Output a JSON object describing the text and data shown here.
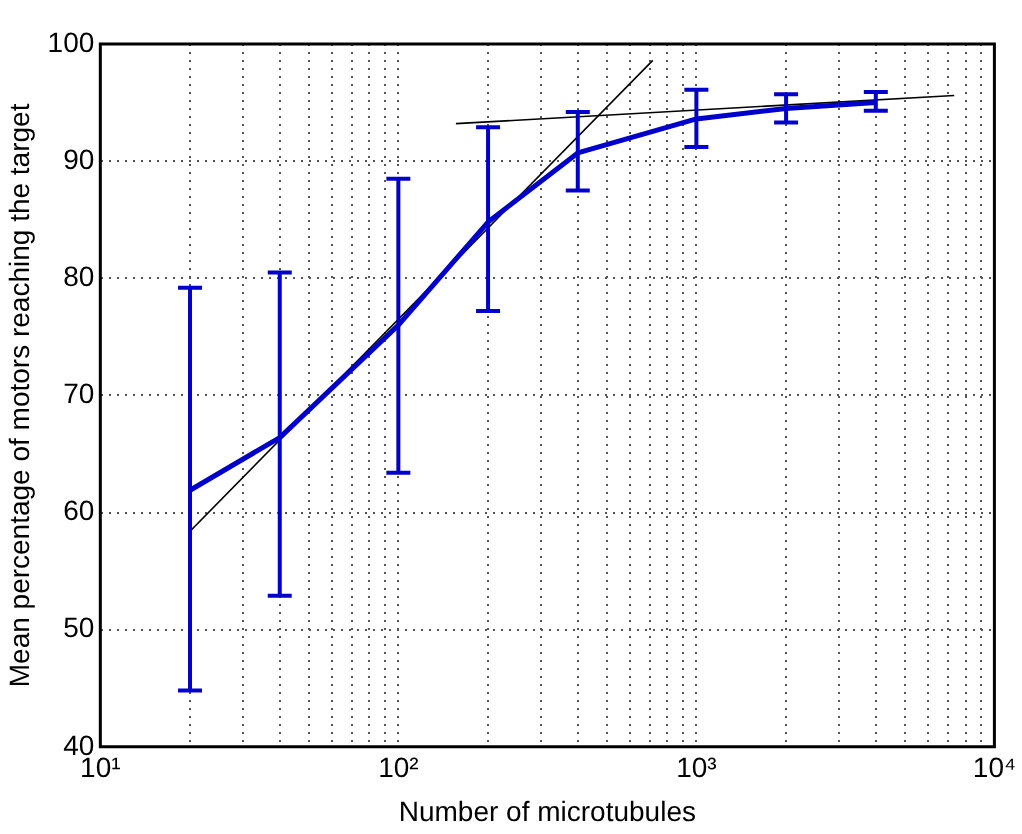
{
  "chart_data": {
    "type": "line",
    "xlabel": "Number of microtubules",
    "ylabel": "Mean percentage of motors reaching the target",
    "log": "x",
    "grid": true,
    "x": [
      20,
      40,
      100,
      200,
      400,
      1000,
      2000,
      4000
    ],
    "xlim": [
      10,
      10000
    ],
    "xticks": [
      {
        "value": 10,
        "label": "10¹"
      },
      {
        "value": 20,
        "label": null
      },
      {
        "value": 30,
        "label": null
      },
      {
        "value": 40,
        "label": null
      },
      {
        "value": 50,
        "label": null
      },
      {
        "value": 60,
        "label": null
      },
      {
        "value": 70,
        "label": null
      },
      {
        "value": 80,
        "label": null
      },
      {
        "value": 90,
        "label": null
      },
      {
        "value": 100,
        "label": "10²"
      },
      {
        "value": 200,
        "label": null
      },
      {
        "value": 300,
        "label": null
      },
      {
        "value": 400,
        "label": null
      },
      {
        "value": 500,
        "label": null
      },
      {
        "value": 600,
        "label": null
      },
      {
        "value": 700,
        "label": null
      },
      {
        "value": 800,
        "label": null
      },
      {
        "value": 900,
        "label": null
      },
      {
        "value": 1000,
        "label": "10³"
      },
      {
        "value": 2000,
        "label": null
      },
      {
        "value": 3000,
        "label": null
      },
      {
        "value": 4000,
        "label": null
      },
      {
        "value": 5000,
        "label": null
      },
      {
        "value": 6000,
        "label": null
      },
      {
        "value": 7000,
        "label": null
      },
      {
        "value": 8000,
        "label": null
      },
      {
        "value": 9000,
        "label": null
      },
      {
        "value": 10000,
        "label": "10⁴"
      }
    ],
    "ylim": [
      40,
      100
    ],
    "yticks": [
      40,
      50,
      60,
      70,
      80,
      90,
      100
    ],
    "series": [
      {
        "color": "#0000cc",
        "values": [
          61.9,
          66.4,
          76,
          84.8,
          90.7,
          93.6,
          94.5,
          95
        ],
        "errors": [
          [
            44.8,
            79.2
          ],
          [
            52.9,
            80.5
          ],
          [
            63.4,
            88.5
          ],
          [
            77.2,
            92.9
          ],
          [
            87.5,
            94.2
          ],
          [
            91.2,
            96.1
          ],
          [
            93.3,
            95.7
          ],
          [
            94.3,
            95.9
          ]
        ]
      },
      {
        "type": "line",
        "color": "#000000",
        "x": [
          20,
          714
        ],
        "values": [
          58.4,
          98.6
        ]
      },
      {
        "type": "line",
        "color": "#000000",
        "x": [
          156,
          7330
        ],
        "values": [
          93.2,
          95.6
        ]
      }
    ]
  }
}
